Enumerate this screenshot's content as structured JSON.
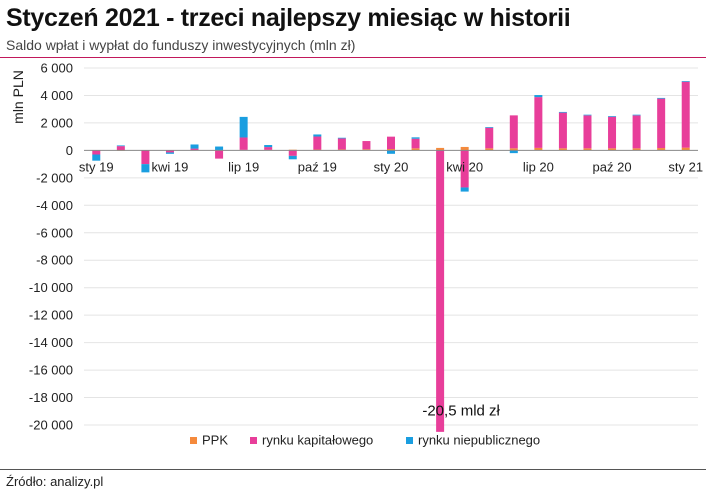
{
  "header": {
    "title": "Styczeń 2021 - trzeci najlepszy miesiąc w historii",
    "subtitle": "Saldo wpłat i wypłat do funduszy inwestycyjnych (mln zł)"
  },
  "footer": {
    "source": "Źródło: analizy.pl"
  },
  "chart_data": {
    "type": "bar",
    "stacked": true,
    "ylabel": "mln PLN",
    "ylim": [
      -20000,
      6000
    ],
    "y_ticks": [
      6000,
      4000,
      2000,
      0,
      -2000,
      -4000,
      -6000,
      -8000,
      -10000,
      -12000,
      -14000,
      -16000,
      -18000,
      -20000
    ],
    "y_tick_labels": [
      "6 000",
      "4 000",
      "2 000",
      "0",
      "-2 000",
      "-4 000",
      "-6 000",
      "-8 000",
      "-10 000",
      "-12 000",
      "-14 000",
      "-16 000",
      "-18 000",
      "-20 000"
    ],
    "categories": [
      "2019-01",
      "2019-02",
      "2019-03",
      "2019-04",
      "2019-05",
      "2019-06",
      "2019-07",
      "2019-08",
      "2019-09",
      "2019-10",
      "2019-11",
      "2019-12",
      "2020-01",
      "2020-02",
      "2020-03",
      "2020-04",
      "2020-05",
      "2020-06",
      "2020-07",
      "2020-08",
      "2020-09",
      "2020-10",
      "2020-11",
      "2020-12",
      "2021-01"
    ],
    "x_tick_labels": [
      {
        "index": 0,
        "label": "sty 19"
      },
      {
        "index": 3,
        "label": "kwi 19"
      },
      {
        "index": 6,
        "label": "lip 19"
      },
      {
        "index": 9,
        "label": "paź 19"
      },
      {
        "index": 12,
        "label": "sty 20"
      },
      {
        "index": 15,
        "label": "kwi 20"
      },
      {
        "index": 18,
        "label": "lip 20"
      },
      {
        "index": 21,
        "label": "paź 20"
      },
      {
        "index": 24,
        "label": "sty 21"
      }
    ],
    "series": [
      {
        "name": "PPK",
        "color": "#f58a3c",
        "values": [
          10,
          10,
          10,
          20,
          30,
          30,
          40,
          40,
          50,
          60,
          70,
          80,
          100,
          150,
          180,
          250,
          150,
          150,
          180,
          150,
          150,
          150,
          150,
          170,
          200
        ]
      },
      {
        "name": "rynku kapitałowego",
        "color": "#e83e9a",
        "values": [
          -300,
          300,
          -1000,
          -150,
          100,
          -600,
          900,
          200,
          -400,
          950,
          800,
          600,
          900,
          700,
          -20500,
          -2700,
          1500,
          2400,
          3700,
          2600,
          2400,
          2300,
          2400,
          3600,
          4800
        ]
      },
      {
        "name": "rynku niepublicznego",
        "color": "#1a9ee0",
        "values": [
          -450,
          50,
          -600,
          -100,
          300,
          250,
          1500,
          150,
          -250,
          150,
          50,
          0,
          -250,
          100,
          0,
          -300,
          50,
          -200,
          150,
          50,
          50,
          50,
          50,
          50,
          50
        ]
      }
    ],
    "annotations": [
      {
        "text": "-20,5 mld zł",
        "index": 14,
        "y": -19000
      }
    ],
    "legend_position": "bottom-center",
    "grid": "horizontal"
  }
}
